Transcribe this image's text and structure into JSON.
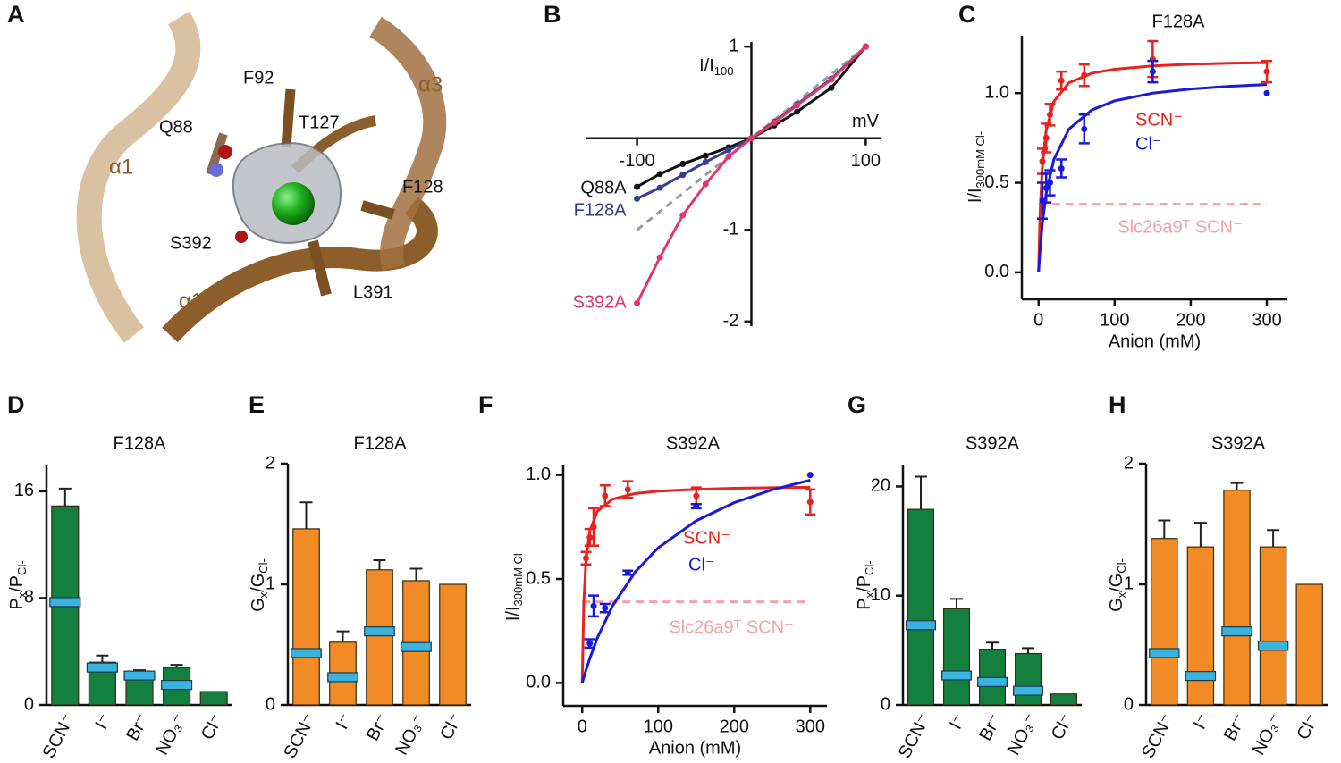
{
  "structure": {
    "label": "A",
    "residues": [
      "F92",
      "T127",
      "Q88",
      "F128",
      "S392",
      "L391"
    ],
    "helices": [
      "α3",
      "α1",
      "α10"
    ]
  },
  "chart_data": [
    {
      "type": "line",
      "label": "B",
      "ylabel": [
        "I/I",
        "100"
      ],
      "xlabel": "mV",
      "x": [
        -100,
        -80,
        -60,
        -40,
        -20,
        0,
        20,
        40,
        70,
        100
      ],
      "series": [
        {
          "name": "Q88A",
          "color": "#111111",
          "values": [
            -0.53,
            -0.39,
            -0.28,
            -0.19,
            -0.1,
            0,
            0.14,
            0.29,
            0.55,
            1
          ]
        },
        {
          "name": "F128A",
          "color": "#34408f",
          "values": [
            -0.66,
            -0.54,
            -0.4,
            -0.26,
            -0.13,
            0,
            0.18,
            0.37,
            0.65,
            1
          ]
        },
        {
          "name": "S392A",
          "color": "#e0356e",
          "values": [
            -1.8,
            -1.3,
            -0.84,
            -0.5,
            -0.2,
            0,
            0.17,
            0.36,
            0.64,
            1
          ]
        }
      ],
      "reference": {
        "color": "#999999",
        "x": [
          -100,
          100
        ],
        "values": [
          -1,
          1
        ]
      },
      "xlim": [
        -145,
        113
      ],
      "ylim": [
        -2.05,
        1.05
      ],
      "xticks": [
        -100,
        100
      ],
      "yticks": [
        -2,
        -1,
        1
      ]
    },
    {
      "type": "scatter",
      "label": "C",
      "title": "F128A",
      "xlabel": "Anion (mM)",
      "ylabel": [
        "I/I",
        "300mM Cl-"
      ],
      "series": [
        {
          "name": "SCN⁻",
          "color": "#e8231f",
          "x": [
            5,
            10,
            15,
            30,
            60,
            150,
            300
          ],
          "values": [
            0.62,
            0.75,
            0.88,
            1.07,
            1.1,
            1.19,
            1.12
          ],
          "errors": [
            0.07,
            0.08,
            0.06,
            0.05,
            0.06,
            0.1,
            0.06
          ]
        },
        {
          "name": "Cl⁻",
          "color": "#1a1adb",
          "x": [
            5,
            10,
            15,
            30,
            60,
            150,
            300
          ],
          "values": [
            0.4,
            0.47,
            0.5,
            0.58,
            0.8,
            1.12,
            1.0
          ],
          "errors": [
            0.1,
            0.08,
            0.07,
            0.05,
            0.08,
            0.06,
            null
          ]
        }
      ],
      "fits": [
        {
          "color": "#e8231f",
          "x": [
            0,
            2,
            5,
            10,
            20,
            40,
            70,
            100,
            150,
            200,
            250,
            300
          ],
          "values": [
            0,
            0.34,
            0.595,
            0.793,
            0.952,
            1.058,
            1.111,
            1.133,
            1.152,
            1.161,
            1.167,
            1.17
          ]
        },
        {
          "color": "#1a1adb",
          "x": [
            0,
            2,
            5,
            10,
            20,
            40,
            70,
            100,
            150,
            200,
            250,
            300
          ],
          "values": [
            0,
            0.129,
            0.275,
            0.44,
            0.629,
            0.8,
            0.906,
            0.957,
            1.0,
            1.023,
            1.038,
            1.048
          ]
        }
      ],
      "reference": {
        "name": "Slc26a9ᵀ SCN⁻",
        "color": "#f5a0a8",
        "x": [
          0,
          300
        ],
        "values": [
          0.38,
          0.38
        ]
      },
      "xlim": [
        -22,
        327
      ],
      "ylim": [
        -0.15,
        1.32
      ],
      "xticks": [
        0,
        100,
        200,
        300
      ],
      "yticks": [
        {
          "value": 0,
          "label": "0.0"
        },
        {
          "value": 0.5,
          "label": "0.5"
        },
        {
          "value": 1,
          "label": "1.0"
        }
      ]
    },
    {
      "type": "bar",
      "label": "D",
      "title": "F128A",
      "ylabel": [
        "P",
        "x",
        "/P",
        "Cl-"
      ],
      "categories": [
        "SCN⁻",
        "I⁻",
        "Br⁻",
        "NO₃⁻",
        "Cl⁻"
      ],
      "values": [
        14.9,
        3.2,
        2.4,
        2.8,
        1
      ],
      "errors": [
        1.3,
        0.5,
        0.2,
        0.2,
        null
      ],
      "reference_values": [
        7.7,
        2.8,
        2.2,
        1.5,
        null
      ],
      "color": "#148040",
      "reference_color": "#3bb3e0",
      "ylim": [
        0,
        18
      ],
      "yticks": [
        0,
        8,
        16
      ]
    },
    {
      "type": "bar",
      "label": "E",
      "title": "F128A",
      "ylabel": [
        "G",
        "x",
        "/G",
        "Cl-"
      ],
      "categories": [
        "SCN⁻",
        "I⁻",
        "Br⁻",
        "NO₃⁻",
        "Cl⁻"
      ],
      "values": [
        1.46,
        0.52,
        1.12,
        1.03,
        1
      ],
      "errors": [
        0.22,
        0.09,
        0.08,
        0.1,
        null
      ],
      "reference_values": [
        0.43,
        0.23,
        0.61,
        0.48,
        null
      ],
      "color": "#f28a25",
      "reference_color": "#3bb3e0",
      "ylim": [
        0,
        2
      ],
      "yticks": [
        0,
        1,
        2
      ]
    },
    {
      "type": "scatter",
      "label": "F",
      "title": "S392A",
      "xlabel": "Anion (mM)",
      "ylabel": [
        "I/I",
        "300mM Cl-"
      ],
      "series": [
        {
          "name": "SCN⁻",
          "color": "#e8231f",
          "x": [
            5,
            10,
            15,
            30,
            60,
            150,
            300
          ],
          "values": [
            0.6,
            0.7,
            0.75,
            0.9,
            0.93,
            0.9,
            0.87
          ],
          "errors": [
            0.03,
            0.04,
            0.09,
            0.05,
            0.04,
            0.04,
            0.06
          ]
        },
        {
          "name": "Cl⁻",
          "color": "#1a1adb",
          "x": [
            10,
            15,
            30,
            60,
            150,
            300
          ],
          "values": [
            0.19,
            0.37,
            0.36,
            0.53,
            0.85,
            1.0
          ],
          "errors": [
            0.02,
            0.05,
            0.02,
            0.01,
            0.01,
            null
          ]
        }
      ],
      "fits": [
        {
          "color": "#e8231f",
          "x": [
            0,
            2,
            5,
            10,
            20,
            40,
            70,
            100,
            150,
            200,
            250,
            300
          ],
          "values": [
            0,
            0.38,
            0.594,
            0.731,
            0.826,
            0.884,
            0.911,
            0.922,
            0.931,
            0.936,
            0.939,
            0.941
          ]
        },
        {
          "color": "#1a1adb",
          "x": [
            0,
            2,
            5,
            10,
            20,
            40,
            70,
            100,
            150,
            200,
            250,
            300
          ],
          "values": [
            0,
            0.0255,
            0.062,
            0.118,
            0.217,
            0.371,
            0.535,
            0.65,
            0.78,
            0.867,
            0.929,
            0.975
          ]
        }
      ],
      "reference": {
        "name": "Slc26a9ᵀ SCN⁻",
        "color": "#f5a0a8",
        "x": [
          0,
          300
        ],
        "values": [
          0.39,
          0.39
        ]
      },
      "xlim": [
        -25,
        322
      ],
      "ylim": [
        -0.11,
        1.05
      ],
      "xticks": [
        0,
        100,
        200,
        300
      ],
      "yticks": [
        {
          "value": 0,
          "label": "0.0"
        },
        {
          "value": 0.5,
          "label": "0.5"
        },
        {
          "value": 1,
          "label": "1.0"
        }
      ]
    },
    {
      "type": "bar",
      "label": "G",
      "title": "S392A",
      "ylabel": [
        "P",
        "x",
        "/P",
        "Cl-"
      ],
      "categories": [
        "SCN⁻",
        "I⁻",
        "Br⁻",
        "NO₃⁻",
        "Cl⁻"
      ],
      "values": [
        17.9,
        8.8,
        5.1,
        4.7,
        1
      ],
      "errors": [
        3.0,
        0.9,
        0.6,
        0.5,
        null
      ],
      "reference_values": [
        7.3,
        2.7,
        2.1,
        1.3,
        null
      ],
      "color": "#148040",
      "reference_color": "#3bb3e0",
      "ylim": [
        0,
        22
      ],
      "yticks": [
        0,
        10,
        20
      ]
    },
    {
      "type": "bar",
      "label": "H",
      "title": "S392A",
      "ylabel": [
        "G",
        "x",
        "/G",
        "Cl-"
      ],
      "categories": [
        "SCN⁻",
        "I⁻",
        "Br⁻",
        "NO₃⁻",
        "Cl⁻"
      ],
      "values": [
        1.38,
        1.31,
        1.78,
        1.31,
        1
      ],
      "errors": [
        0.15,
        0.2,
        0.06,
        0.14,
        null
      ],
      "reference_values": [
        0.43,
        0.24,
        0.61,
        0.49,
        null
      ],
      "color": "#f28a25",
      "reference_color": "#3bb3e0",
      "ylim": [
        0,
        2
      ],
      "yticks": [
        0,
        1,
        2
      ]
    }
  ]
}
